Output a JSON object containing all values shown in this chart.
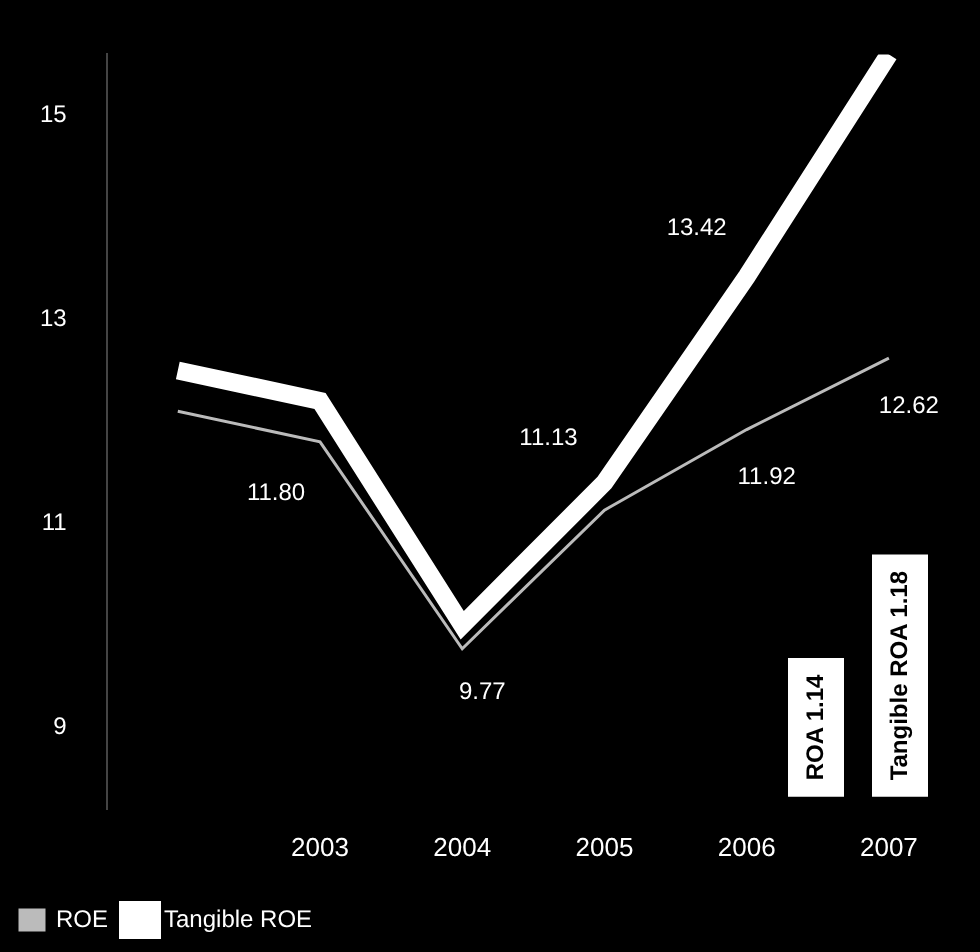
{
  "chart_data": {
    "type": "line",
    "categories": [
      null,
      "2003",
      "2004",
      "2005",
      "2006",
      "2007"
    ],
    "series": [
      {
        "name": "ROE",
        "color": "#bbbbbb",
        "values": [
          12.1,
          11.8,
          9.77,
          11.13,
          11.92,
          12.62
        ],
        "value_labels": [
          null,
          "11.80",
          "9.77",
          "11.13",
          "11.92",
          "12.62"
        ]
      },
      {
        "name": "Tangible ROE",
        "color": "#ffffff",
        "values": [
          12.5,
          12.2,
          10.0,
          11.4,
          13.42,
          15.6
        ],
        "value_labels": [
          null,
          null,
          null,
          null,
          "13.42",
          null
        ]
      }
    ],
    "ylim": [
      8.2,
      15.6
    ],
    "yticks": [
      9,
      11,
      13,
      15
    ],
    "legend": "bottom left",
    "marker": "none",
    "annotations": [
      "ROA 1.14",
      "Tangible ROA 1.18"
    ]
  }
}
